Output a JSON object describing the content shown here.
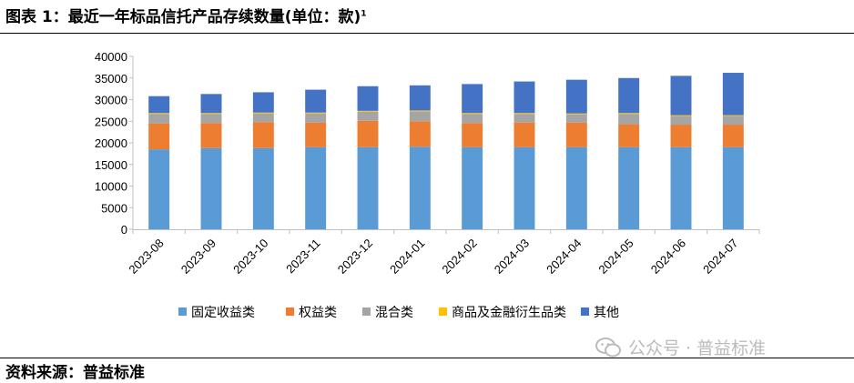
{
  "header": {
    "title": "图表 1：最近一年标品信托产品存续数量(单位：款)",
    "footnote": "1"
  },
  "source": {
    "text": "资料来源：普益标准"
  },
  "watermark": {
    "text": "公众号 · 普益标准"
  },
  "chart_data": {
    "type": "bar",
    "stacked": true,
    "categories": [
      "2023-08",
      "2023-09",
      "2023-10",
      "2023-11",
      "2023-12",
      "2024-01",
      "2024-02",
      "2024-03",
      "2024-04",
      "2024-05",
      "2024-06",
      "2024-07"
    ],
    "series": [
      {
        "name": "固定收益类",
        "color": "#5b9bd5",
        "values": [
          18500,
          18800,
          18800,
          19000,
          19000,
          19100,
          19000,
          19000,
          19000,
          19000,
          19000,
          19000
        ]
      },
      {
        "name": "权益类",
        "color": "#ed7d31",
        "values": [
          6000,
          5800,
          6000,
          5700,
          6100,
          5900,
          5600,
          5700,
          5700,
          5300,
          5200,
          5200
        ]
      },
      {
        "name": "混合类",
        "color": "#a5a5a5",
        "values": [
          2200,
          2100,
          2000,
          2100,
          2100,
          2300,
          2100,
          2000,
          1900,
          2400,
          2000,
          2000
        ]
      },
      {
        "name": "商品及金融衍生品类",
        "color": "#ffc000",
        "values": [
          200,
          200,
          200,
          200,
          200,
          200,
          200,
          200,
          200,
          200,
          200,
          200
        ]
      },
      {
        "name": "其他",
        "color": "#4472c4",
        "values": [
          3900,
          4400,
          4700,
          5300,
          5700,
          5800,
          6700,
          7300,
          7800,
          8100,
          9100,
          9800
        ]
      }
    ],
    "y_ticks": [
      0,
      5000,
      10000,
      15000,
      20000,
      25000,
      30000,
      35000,
      40000
    ],
    "ylim": [
      0,
      40000
    ],
    "grid": false,
    "legend_position": "bottom"
  }
}
